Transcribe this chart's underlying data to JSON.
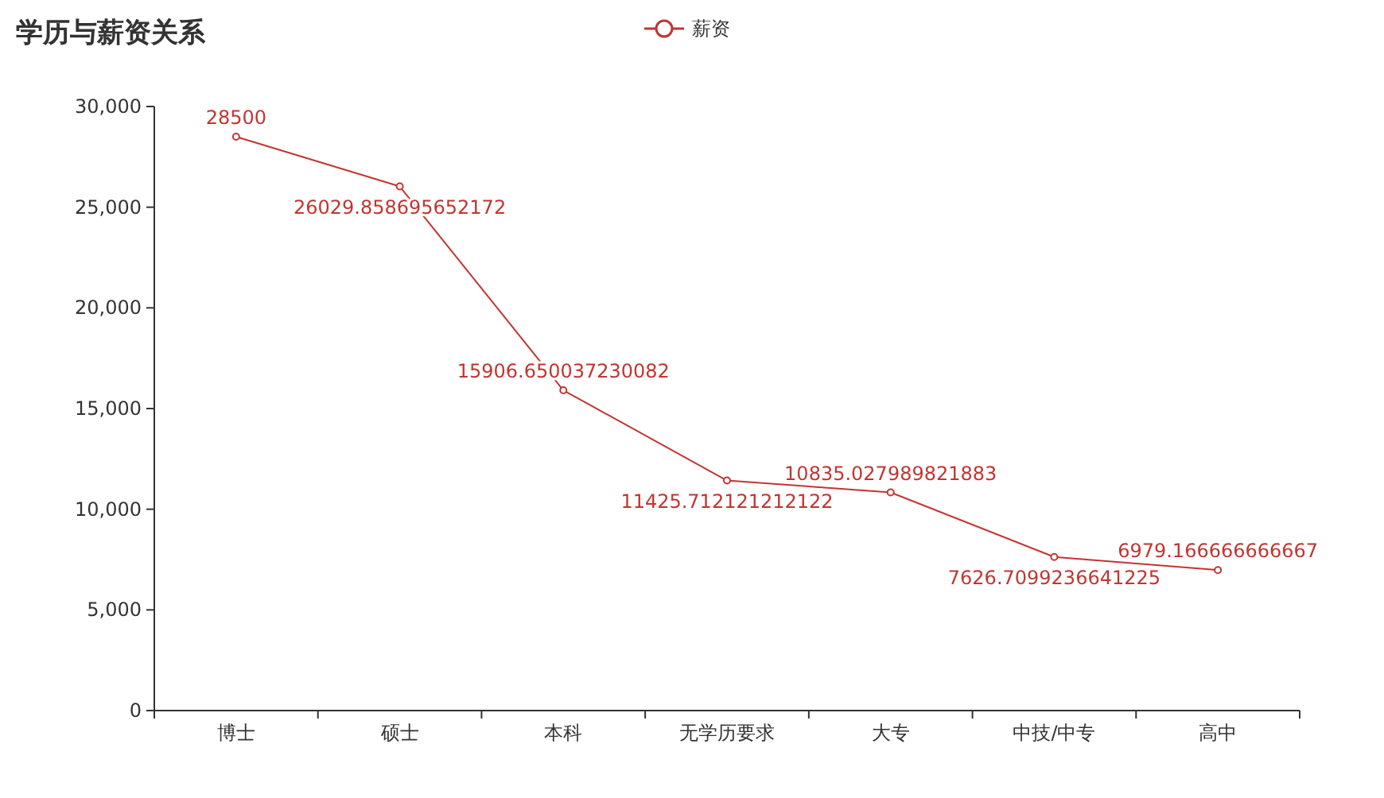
{
  "chart_data": {
    "type": "line",
    "title": "学历与薪资关系",
    "categories": [
      "博士",
      "硕士",
      "本科",
      "无学历要求",
      "大专",
      "中技/中专",
      "高中"
    ],
    "series": [
      {
        "name": "薪资",
        "color": "#c23531",
        "values": [
          28500,
          26029.858695652172,
          15906.650037230082,
          11425.712121212122,
          10835.027989821883,
          7626.7099236641225,
          6979.166666666667
        ]
      }
    ],
    "ylim": [
      0,
      30000
    ],
    "yticks": [
      {
        "value": 0,
        "label": "0"
      },
      {
        "value": 5000,
        "label": "5,000"
      },
      {
        "value": 10000,
        "label": "10,000"
      },
      {
        "value": 15000,
        "label": "15,000"
      },
      {
        "value": 20000,
        "label": "20,000"
      },
      {
        "value": 25000,
        "label": "25,000"
      },
      {
        "value": 30000,
        "label": "30,000"
      }
    ],
    "data_labels": true,
    "legend": "top",
    "marker": "circle",
    "line_style": "solid",
    "grid": false
  }
}
